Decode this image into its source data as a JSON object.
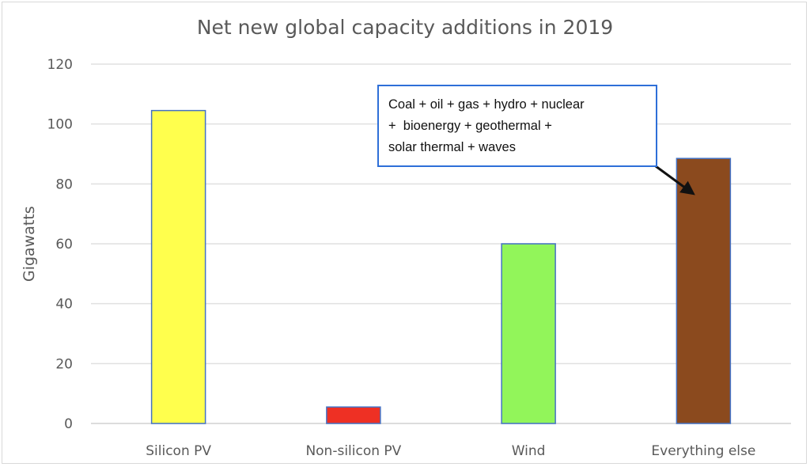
{
  "chart_data": {
    "type": "bar",
    "title": "Net new global capacity additions in 2019",
    "xlabel": "",
    "ylabel": "Gigawatts",
    "categories": [
      "Silicon PV",
      "Non-silicon PV",
      "Wind",
      "Everything else"
    ],
    "values": [
      104.5,
      5.5,
      60,
      88.5
    ],
    "colors": [
      "#ffff4d",
      "#ee3024",
      "#92f55a",
      "#8b4a1e"
    ],
    "bar_border_color": "#4472c4",
    "ylim": [
      0,
      120
    ],
    "yticks": [
      0,
      20,
      40,
      60,
      80,
      100,
      120
    ],
    "grid": true,
    "legend": "none",
    "annotations": [
      {
        "text_lines": [
          "Coal + oil + gas + hydro + nuclear",
          "+  bioenergy + geothermal +",
          "solar thermal + waves"
        ],
        "points_to": "Everything else",
        "border_color": "#2e6fd8"
      }
    ]
  }
}
